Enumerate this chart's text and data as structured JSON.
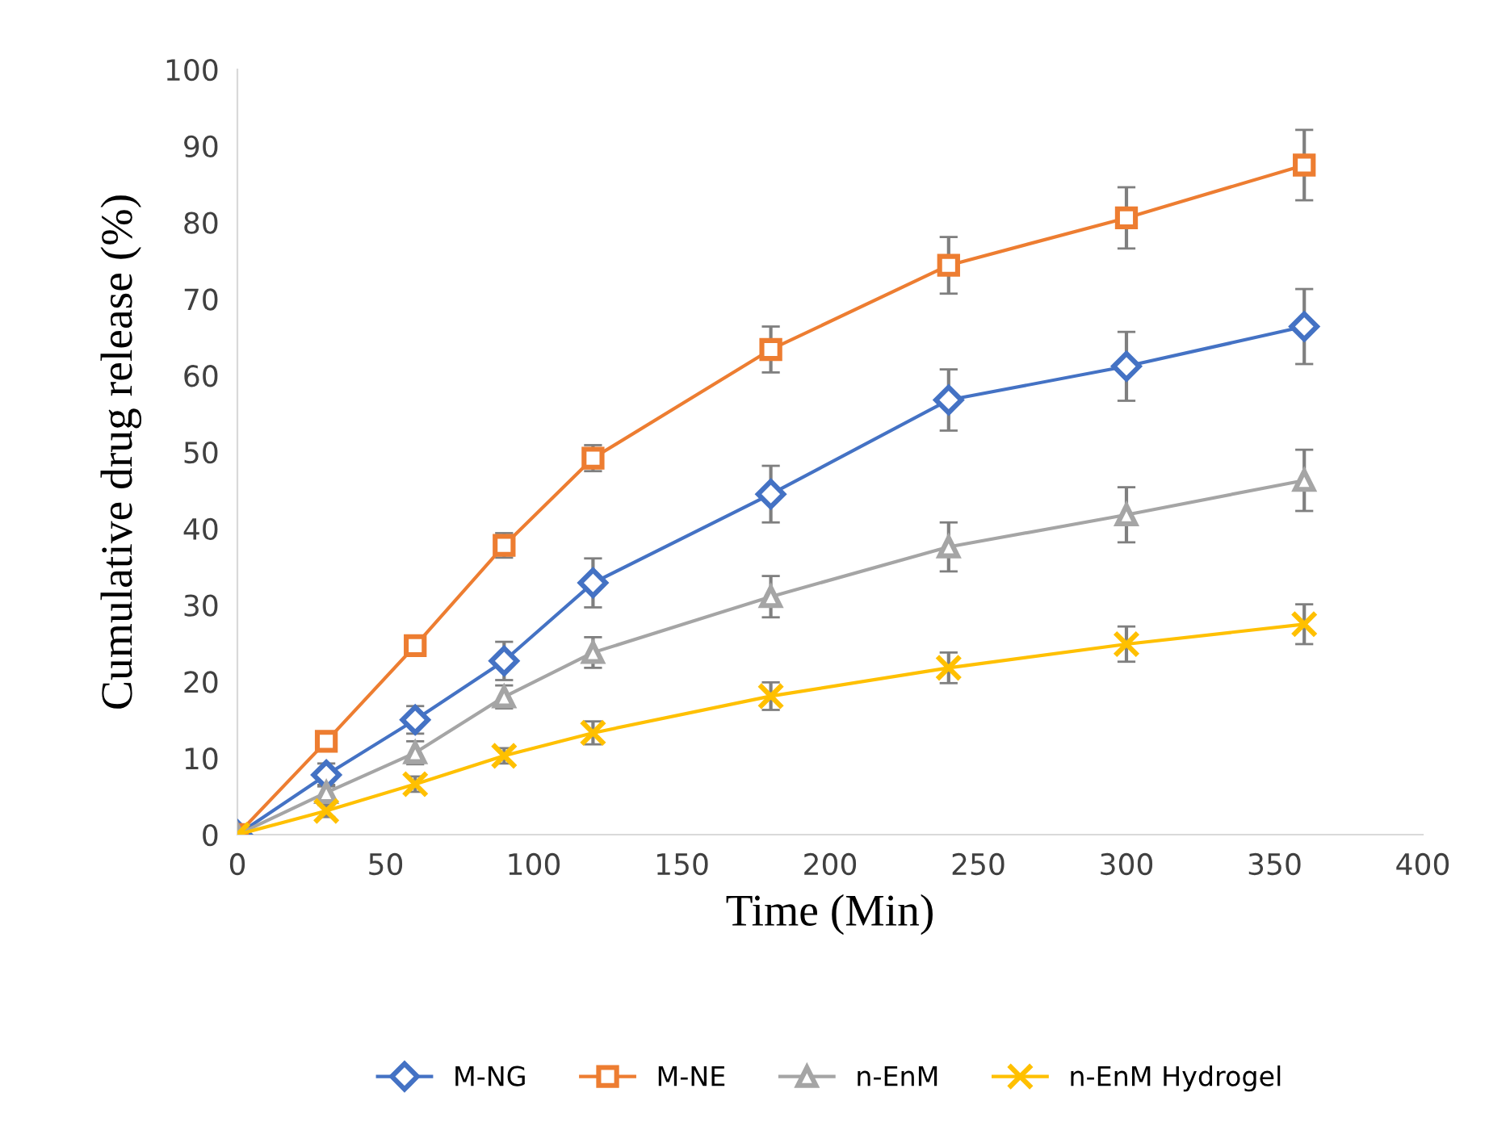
{
  "chart_data": {
    "type": "line",
    "xlabel": "Time (Min)",
    "ylabel": "Cumulative drug release (%)",
    "x": [
      0,
      30,
      60,
      90,
      120,
      180,
      240,
      300,
      360
    ],
    "series": [
      {
        "name": "M-NG",
        "color": "#4472c4",
        "marker": "diamond",
        "values": [
          0,
          7.8,
          15,
          22.7,
          32.9,
          44.5,
          56.8,
          61.2,
          66.4
        ],
        "errors": [
          0.5,
          1.5,
          1.8,
          2.5,
          3.2,
          3.7,
          4,
          4.5,
          4.9
        ]
      },
      {
        "name": "M-NE",
        "color": "#ed7d31",
        "marker": "square",
        "values": [
          0,
          12.2,
          24.7,
          37.8,
          49.2,
          63.4,
          74.4,
          80.6,
          87.5
        ],
        "errors": [
          null,
          null,
          null,
          1.6,
          1.7,
          3,
          3.7,
          4,
          4.6
        ]
      },
      {
        "name": "n-EnM",
        "color": "#a5a5a5",
        "marker": "triangle",
        "values": [
          0,
          5.5,
          10.7,
          18,
          23.8,
          31.1,
          37.6,
          41.8,
          46.3
        ],
        "errors": [
          0.5,
          1,
          1.5,
          1.5,
          2,
          2.7,
          3.2,
          3.6,
          4
        ]
      },
      {
        "name": "n-EnM Hydrogel",
        "color": "#ffc000",
        "marker": "cross",
        "values": [
          0,
          3.1,
          6.6,
          10.3,
          13.3,
          18.1,
          21.8,
          24.9,
          27.5
        ],
        "errors": [
          0.5,
          0.8,
          1,
          1,
          1.5,
          1.8,
          2,
          2.3,
          2.6
        ]
      }
    ],
    "xlim": [
      0,
      400
    ],
    "xticks": [
      0,
      50,
      100,
      150,
      200,
      250,
      300,
      350,
      400
    ],
    "ylim": [
      0,
      100
    ],
    "yticks": [
      0,
      10,
      20,
      30,
      40,
      50,
      60,
      70,
      80,
      90,
      100
    ],
    "grid": false,
    "legend": "bottom",
    "line_style": "solid"
  }
}
